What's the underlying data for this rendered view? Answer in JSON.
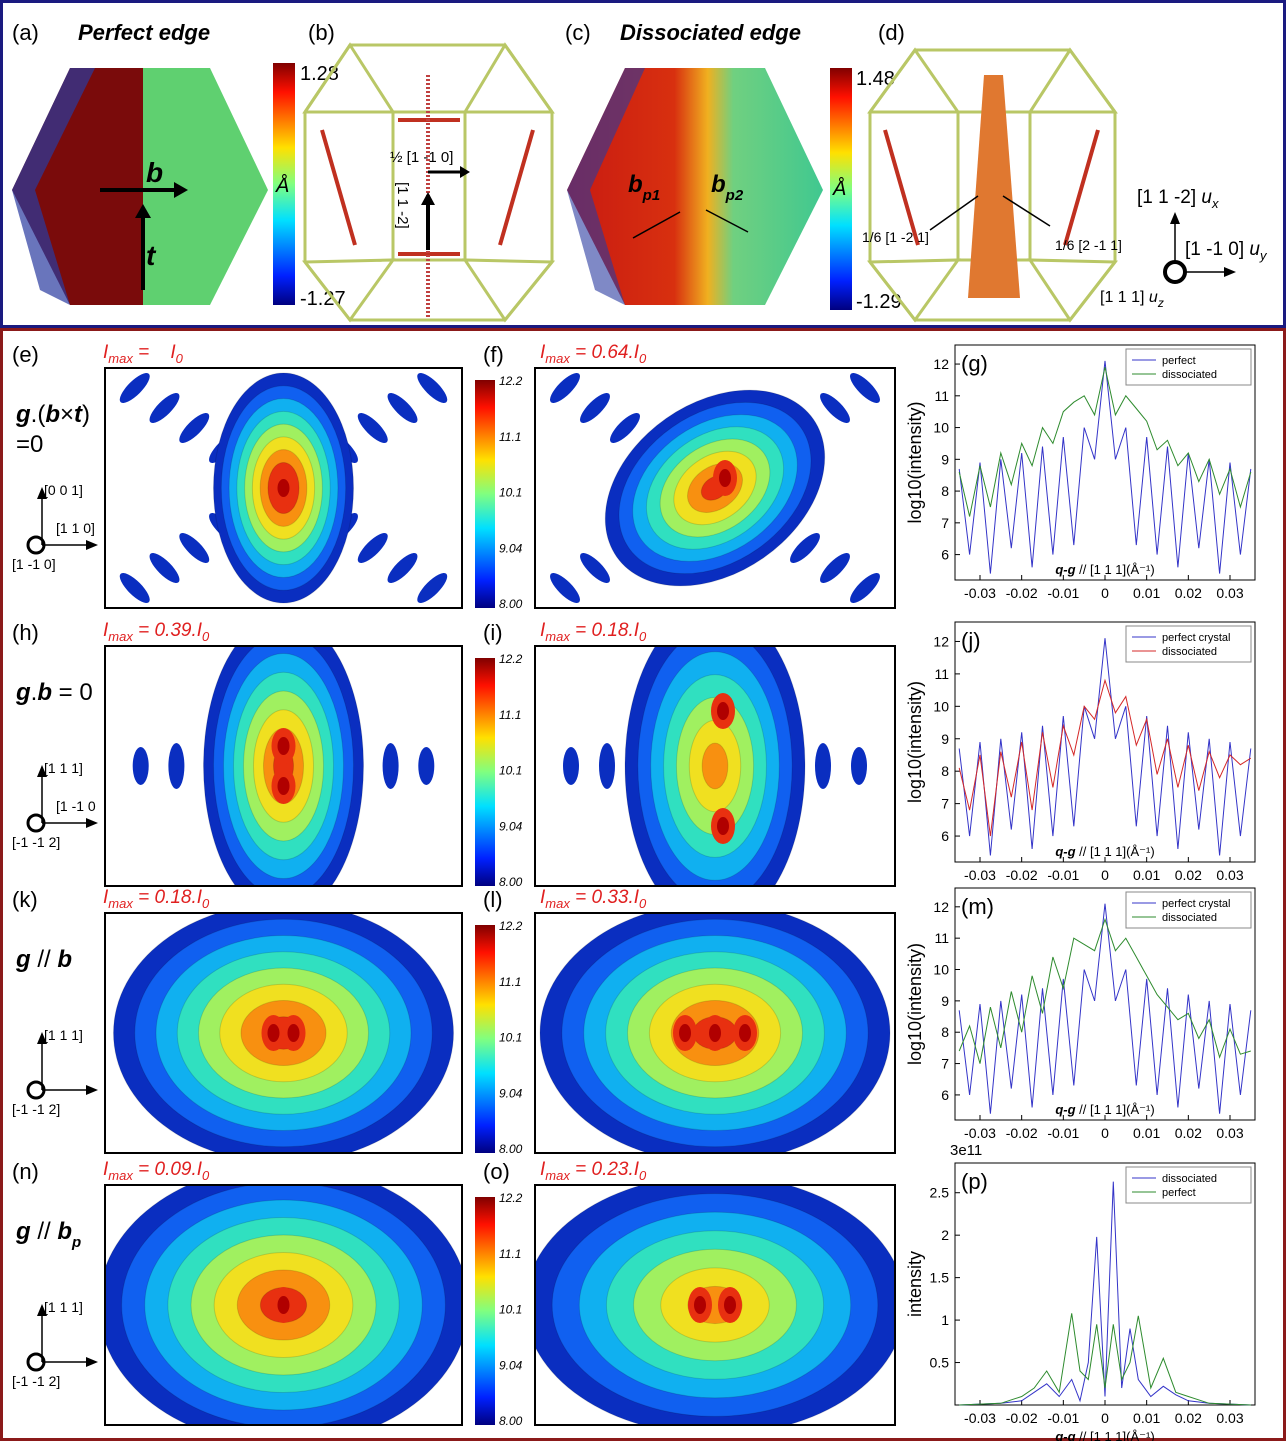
{
  "header": {
    "panels": [
      {
        "label": "(a)",
        "title": "Perfect edge"
      },
      {
        "label": "(b)"
      },
      {
        "label": "(c)",
        "title": "Dissociated edge"
      },
      {
        "label": "(d)"
      }
    ],
    "colorbars": [
      {
        "max": "1.28",
        "min": "-1.27",
        "unit": "Å"
      },
      {
        "max": "1.48",
        "min": "-1.29",
        "unit": "Å"
      }
    ],
    "vectors": {
      "b": "b",
      "t": "t",
      "b_half": "½ [1 -1 0]",
      "line_dir": "[1 1 -2]",
      "bp1": {
        "main": "b",
        "sub": "p1"
      },
      "bp2": {
        "main": "b",
        "sub": "p2"
      },
      "partial1": "1/6 [1 -2 1]",
      "partial2": "1/6 [2 -1 1]"
    },
    "axes": [
      {
        "text": "[1 1 -2] ",
        "var": "u",
        "sub": "x"
      },
      {
        "text": "[1 -1 0] ",
        "var": "u",
        "sub": "y"
      },
      {
        "text": "[1 1 1] ",
        "var": "u",
        "sub": "z"
      }
    ]
  },
  "rows": [
    {
      "labels": [
        "(e)",
        "(f)"
      ],
      "imax": [
        {
          "symbol": "I",
          "sub": "max",
          "eq": " =    I",
          "sub2": "0"
        },
        {
          "symbol": "I",
          "sub": "max",
          "eq": " = 0.64.I",
          "sub2": "0"
        }
      ],
      "condition": [
        "g",
        ".(",
        "b",
        "×",
        "t",
        ")"
      ],
      "condition2": "=0",
      "axes": {
        "up": "[0 0 1]",
        "right": "[1 1 0]",
        "origin": "[1 -1 0]"
      },
      "colorbar": [
        "12.2",
        "11.1",
        "10.1",
        "9.04",
        "8.00"
      ]
    },
    {
      "labels": [
        "(h)",
        "(i)"
      ],
      "imax": [
        {
          "symbol": "I",
          "sub": "max",
          "eq": " = 0.39.I",
          "sub2": "0"
        },
        {
          "symbol": "I",
          "sub": "max",
          "eq": " = 0.18.I",
          "sub2": "0"
        }
      ],
      "condition": [
        "g",
        ".",
        "b",
        " = 0"
      ],
      "axes": {
        "up": "[1 1 1]",
        "right": "[1 -1 0",
        "origin": "[-1 -1 2]"
      },
      "colorbar": [
        "12.2",
        "11.1",
        "10.1",
        "9.04",
        "8.00"
      ]
    },
    {
      "labels": [
        "(k)",
        "(l)"
      ],
      "imax": [
        {
          "symbol": "I",
          "sub": "max",
          "eq": " = 0.18.I",
          "sub2": "0"
        },
        {
          "symbol": "I",
          "sub": "max",
          "eq": " = 0.33.I",
          "sub2": "0"
        }
      ],
      "condition": [
        "g",
        " // ",
        "b"
      ],
      "axes": {
        "up": "[1 1 1]",
        "origin": "[-1 -1 2]"
      },
      "colorbar": [
        "12.2",
        "11.1",
        "10.1",
        "9.04",
        "8.00"
      ]
    },
    {
      "labels": [
        "(n)",
        "(o)"
      ],
      "imax": [
        {
          "symbol": "I",
          "sub": "max",
          "eq": " = 0.09.I",
          "sub2": "0"
        },
        {
          "symbol": "I",
          "sub": "max",
          "eq": " = 0.23.I",
          "sub2": "0"
        }
      ],
      "condition": [
        "g",
        " // ",
        "b"
      ],
      "condition_sub": "p",
      "axes": {
        "up": "[1 1 1]",
        "origin": "[-1 -1 2]"
      },
      "colorbar": [
        "12.2",
        "11.1",
        "10.1",
        "9.04",
        "8.00"
      ]
    }
  ],
  "chart_data": [
    {
      "type": "line",
      "panel": "(g)",
      "ylabel": "log10(intensity)",
      "xlabel_bold": "q-g",
      "xlabel": " // [1 1 1](Å⁻¹)",
      "x": [
        -0.035,
        -0.0325,
        -0.03,
        -0.0275,
        -0.025,
        -0.0225,
        -0.02,
        -0.0175,
        -0.015,
        -0.0125,
        -0.01,
        -0.0075,
        -0.005,
        -0.0025,
        0,
        0.0025,
        0.005,
        0.0075,
        0.01,
        0.0125,
        0.015,
        0.0175,
        0.02,
        0.0225,
        0.025,
        0.0275,
        0.03,
        0.0325,
        0.035
      ],
      "xlim": [
        -0.036,
        0.036
      ],
      "xticks": [
        -0.03,
        -0.02,
        -0.01,
        0,
        0.01,
        0.02,
        0.03
      ],
      "ylim": [
        5.2,
        12.6
      ],
      "yticks": [
        6,
        7,
        8,
        9,
        10,
        11,
        12
      ],
      "legend": "upper right",
      "series": [
        {
          "name": "perfect",
          "color": "#3434c8",
          "values": [
            8.7,
            6.0,
            8.9,
            5.4,
            9.0,
            6.2,
            9.2,
            5.6,
            9.4,
            6.0,
            9.7,
            6.3,
            10.0,
            9.0,
            12.1,
            9.0,
            10.0,
            6.3,
            9.7,
            6.0,
            9.4,
            5.6,
            9.2,
            6.2,
            9.0,
            5.4,
            8.9,
            6.0,
            8.7
          ]
        },
        {
          "name": "dissociated",
          "color": "#2e8b2e",
          "values": [
            8.6,
            7.2,
            8.8,
            7.5,
            9.2,
            8.2,
            9.5,
            8.8,
            10.0,
            9.5,
            10.5,
            10.8,
            11.0,
            10.4,
            11.9,
            10.4,
            11.0,
            10.6,
            10.2,
            9.3,
            9.6,
            8.8,
            9.2,
            8.3,
            9.0,
            7.9,
            8.7,
            7.5,
            8.6
          ]
        }
      ]
    },
    {
      "type": "line",
      "panel": "(j)",
      "ylabel": "log10(intensity)",
      "xlabel_bold": "q-g",
      "xlabel": " // [1 1 1](Å⁻¹)",
      "x": [
        -0.035,
        -0.0325,
        -0.03,
        -0.0275,
        -0.025,
        -0.0225,
        -0.02,
        -0.0175,
        -0.015,
        -0.0125,
        -0.01,
        -0.0075,
        -0.005,
        -0.0025,
        0,
        0.0025,
        0.005,
        0.0075,
        0.01,
        0.0125,
        0.015,
        0.0175,
        0.02,
        0.0225,
        0.025,
        0.0275,
        0.03,
        0.0325,
        0.035
      ],
      "xlim": [
        -0.036,
        0.036
      ],
      "xticks": [
        -0.03,
        -0.02,
        -0.01,
        0,
        0.01,
        0.02,
        0.03
      ],
      "ylim": [
        5.2,
        12.6
      ],
      "yticks": [
        6,
        7,
        8,
        9,
        10,
        11,
        12
      ],
      "legend": "upper right",
      "series": [
        {
          "name": "perfect crystal",
          "color": "#3434c8",
          "values": [
            8.7,
            6.0,
            8.9,
            5.4,
            9.0,
            6.2,
            9.2,
            5.6,
            9.4,
            6.0,
            9.7,
            6.3,
            10.0,
            9.0,
            12.1,
            9.0,
            10.0,
            6.3,
            9.7,
            6.0,
            9.4,
            5.6,
            9.2,
            6.2,
            9.0,
            5.4,
            8.9,
            6.0,
            8.7
          ]
        },
        {
          "name": "dissociated",
          "color": "#d42828",
          "values": [
            8.1,
            6.8,
            8.5,
            6.0,
            8.6,
            7.2,
            8.9,
            6.8,
            9.2,
            7.5,
            9.4,
            8.5,
            10.0,
            9.6,
            10.8,
            9.8,
            10.3,
            8.8,
            9.6,
            7.9,
            9.0,
            7.5,
            8.8,
            7.4,
            8.6,
            7.8,
            8.5,
            8.2,
            8.4
          ]
        }
      ]
    },
    {
      "type": "line",
      "panel": "(m)",
      "ylabel": "log10(intensity)",
      "xlabel_bold": "q-g",
      "xlabel": " // [1 1 1](Å⁻¹)",
      "x": [
        -0.035,
        -0.0325,
        -0.03,
        -0.0275,
        -0.025,
        -0.0225,
        -0.02,
        -0.0175,
        -0.015,
        -0.0125,
        -0.01,
        -0.0075,
        -0.005,
        -0.0025,
        0,
        0.0025,
        0.005,
        0.0075,
        0.01,
        0.0125,
        0.015,
        0.0175,
        0.02,
        0.0225,
        0.025,
        0.0275,
        0.03,
        0.0325,
        0.035
      ],
      "xlim": [
        -0.036,
        0.036
      ],
      "xticks": [
        -0.03,
        -0.02,
        -0.01,
        0,
        0.01,
        0.02,
        0.03
      ],
      "ylim": [
        5.2,
        12.6
      ],
      "yticks": [
        6,
        7,
        8,
        9,
        10,
        11,
        12
      ],
      "legend": "upper right",
      "series": [
        {
          "name": "perfect crystal",
          "color": "#3434c8",
          "values": [
            8.7,
            6.0,
            8.9,
            5.4,
            9.0,
            6.2,
            9.2,
            5.6,
            9.4,
            6.0,
            9.7,
            6.3,
            10.0,
            9.0,
            12.1,
            9.0,
            10.0,
            6.3,
            9.7,
            6.0,
            9.4,
            5.6,
            9.2,
            6.2,
            9.0,
            5.4,
            8.9,
            6.0,
            8.7
          ]
        },
        {
          "name": "dissociated",
          "color": "#2e8b2e",
          "values": [
            7.4,
            8.2,
            7.0,
            8.8,
            7.5,
            9.3,
            8.0,
            9.8,
            8.6,
            10.4,
            9.4,
            11.0,
            10.8,
            10.6,
            11.6,
            10.6,
            11.0,
            10.4,
            9.8,
            9.2,
            8.8,
            8.4,
            8.6,
            7.8,
            8.4,
            7.2,
            8.1,
            7.3,
            7.4
          ]
        }
      ]
    },
    {
      "type": "line",
      "panel": "(p)",
      "ylabel": "intensity",
      "xlabel_bold": "q-g",
      "xlabel": " // [1 1 1](Å⁻¹)",
      "offset_label": "3e11",
      "x": [
        -0.035,
        -0.025,
        -0.02,
        -0.017,
        -0.014,
        -0.011,
        -0.008,
        -0.006,
        -0.004,
        -0.002,
        0,
        0.002,
        0.004,
        0.006,
        0.008,
        0.011,
        0.014,
        0.017,
        0.02,
        0.025,
        0.035
      ],
      "xlim": [
        -0.036,
        0.036
      ],
      "xticks": [
        -0.03,
        -0.02,
        -0.01,
        0,
        0.01,
        0.02,
        0.03
      ],
      "ylim": [
        0,
        2.85
      ],
      "yticks": [
        0.5,
        1,
        1.5,
        2,
        2.5
      ],
      "legend": "upper right",
      "series": [
        {
          "name": "dissociated",
          "color": "#3434c8",
          "values": [
            0,
            0.02,
            0.05,
            0.15,
            0.25,
            0.1,
            0.3,
            0.05,
            0.5,
            1.98,
            0.1,
            2.63,
            0.2,
            0.9,
            0.3,
            0.1,
            0.22,
            0.12,
            0.05,
            0.02,
            0
          ]
        },
        {
          "name": "perfect",
          "color": "#2e8b2e",
          "values": [
            0,
            0.02,
            0.1,
            0.2,
            0.4,
            0.15,
            1.08,
            0.4,
            0.3,
            0.95,
            0.2,
            0.95,
            0.3,
            0.5,
            1.05,
            0.2,
            0.55,
            0.15,
            0.1,
            0.02,
            0
          ]
        }
      ]
    }
  ]
}
